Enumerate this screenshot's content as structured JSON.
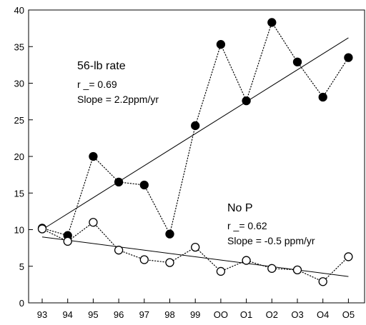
{
  "chart_data": {
    "type": "scatter",
    "categories": [
      "93",
      "94",
      "95",
      "96",
      "97",
      "98",
      "99",
      "OO",
      "O1",
      "O2",
      "O3",
      "O4",
      "O5"
    ],
    "ylim": [
      0,
      40
    ],
    "yticks": [
      0,
      5,
      10,
      15,
      20,
      25,
      30,
      35,
      40
    ],
    "grid": false,
    "series": [
      {
        "marker": "filled-circle",
        "values": [
          10.2,
          9.2,
          20.0,
          16.5,
          16.1,
          9.4,
          24.2,
          35.3,
          27.6,
          38.3,
          32.9,
          28.1,
          33.5
        ],
        "trend": {
          "start": 10.0,
          "end": 36.2
        },
        "annotation": {
          "title": "56-lb rate",
          "r": "r _= 0.69",
          "slope": "Slope = 2.2ppm/yr"
        }
      },
      {
        "marker": "open-circle",
        "values": [
          10.1,
          8.4,
          11.0,
          7.2,
          5.9,
          5.5,
          7.6,
          4.3,
          5.8,
          4.7,
          4.5,
          2.9,
          6.3
        ],
        "trend": {
          "start": 9.0,
          "end": 3.6
        },
        "annotation": {
          "title": "No P",
          "r": "r _= 0.62",
          "slope": "Slope = -0.5 ppm/yr"
        }
      }
    ]
  }
}
